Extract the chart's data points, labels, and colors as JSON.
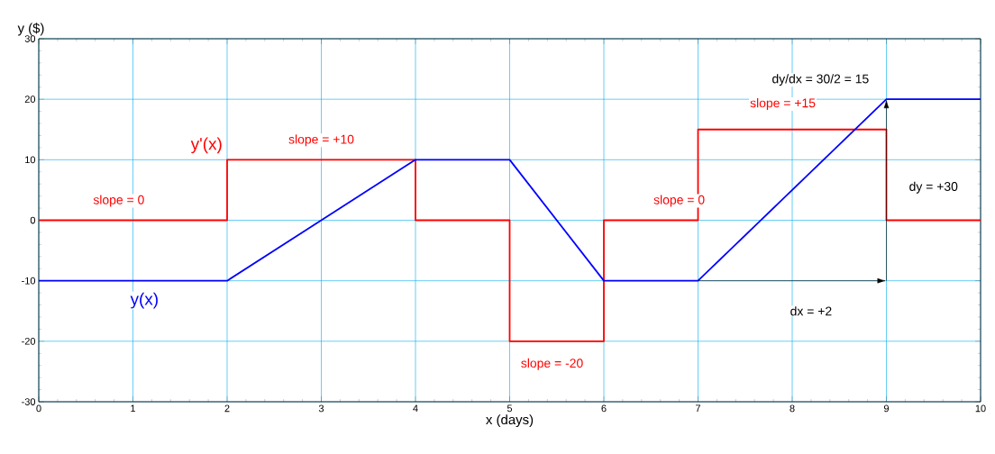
{
  "chart_data": {
    "type": "line",
    "xlabel": "x (days)",
    "ylabel": "y ($)",
    "xlim": [
      0,
      10
    ],
    "ylim": [
      -30,
      30
    ],
    "xticks": [
      0,
      1,
      2,
      3,
      4,
      5,
      6,
      7,
      8,
      9,
      10
    ],
    "yticks": [
      -30,
      -20,
      -10,
      0,
      10,
      20,
      30
    ],
    "grid": true,
    "series": [
      {
        "name": "y'(x)",
        "color": "#ff0000",
        "x": [
          0,
          2,
          2,
          4,
          4,
          5,
          5,
          6,
          6,
          7,
          7,
          9,
          9,
          10
        ],
        "values": [
          0,
          0,
          10,
          10,
          0,
          0,
          -20,
          -20,
          0,
          0,
          15,
          15,
          0,
          0
        ]
      },
      {
        "name": "y(x)",
        "color": "#0000ff",
        "x": [
          0,
          2,
          4,
          5,
          6,
          7,
          9,
          10
        ],
        "values": [
          -10,
          -10,
          10,
          10,
          -10,
          -10,
          20,
          20
        ]
      }
    ],
    "annotations": [
      "slope = 0",
      "slope = +10",
      "slope = 0",
      "slope = -20",
      "slope = +15",
      "dy/dx = 30/2 = 15",
      "dy = +30",
      "dx = +2"
    ]
  }
}
